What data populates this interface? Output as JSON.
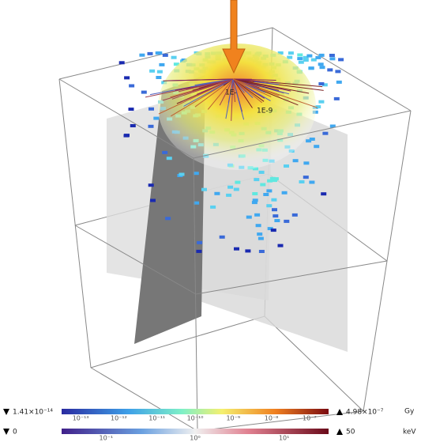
{
  "scene": {
    "annotations": [
      "1E-",
      "1E-9"
    ]
  },
  "colorbars": [
    {
      "min_label": "1.41×10⁻¹⁴",
      "max_label": "4.98×10⁻⁷",
      "unit": "Gy",
      "ticks": [
        "10⁻¹³",
        "10⁻¹²",
        "10⁻¹¹",
        "10⁻¹⁰",
        "10⁻⁹",
        "10⁻⁸",
        "10⁻⁷"
      ]
    },
    {
      "min_label": "0",
      "max_label": "50",
      "unit": "keV",
      "ticks": [
        "10⁻¹",
        "10⁰",
        "10¹"
      ]
    }
  ]
}
